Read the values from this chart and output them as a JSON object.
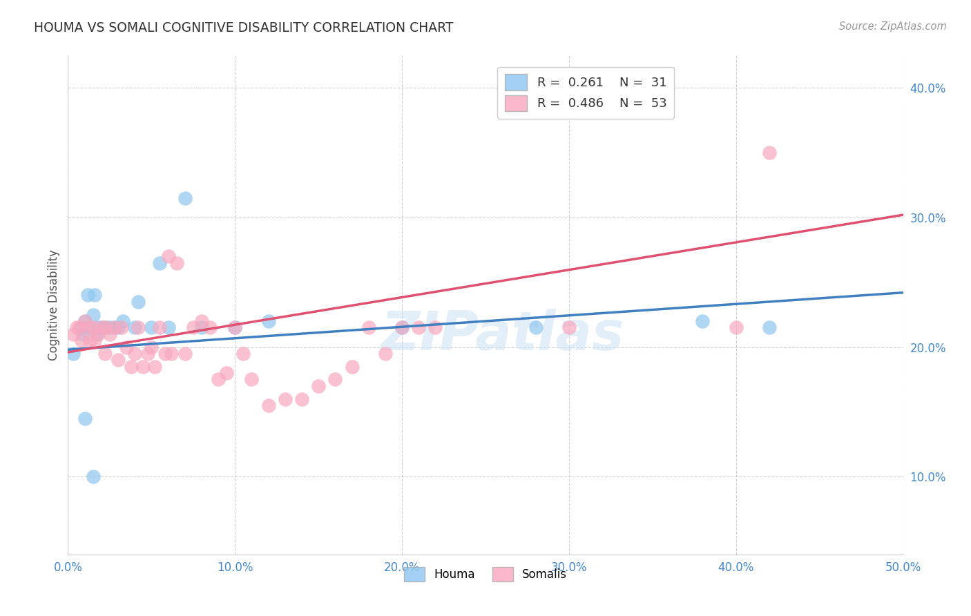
{
  "title": "HOUMA VS SOMALI COGNITIVE DISABILITY CORRELATION CHART",
  "source": "Source: ZipAtlas.com",
  "ylabel_label": "Cognitive Disability",
  "xlim": [
    0.0,
    0.5
  ],
  "ylim": [
    0.04,
    0.425
  ],
  "xticks": [
    0.0,
    0.1,
    0.2,
    0.3,
    0.4,
    0.5
  ],
  "yticks": [
    0.1,
    0.2,
    0.3,
    0.4
  ],
  "ytick_labels": [
    "10.0%",
    "20.0%",
    "30.0%",
    "40.0%"
  ],
  "xtick_labels": [
    "0.0%",
    "10.0%",
    "20.0%",
    "30.0%",
    "40.0%",
    "50.0%"
  ],
  "r_houma": 0.261,
  "n_houma": 31,
  "r_somali": 0.486,
  "n_somali": 53,
  "houma_color": "#8ec6f0",
  "somali_color": "#f8a8be",
  "houma_line_color": "#4080c0",
  "somali_line_color": "#e05070",
  "houma_x": [
    0.003,
    0.008,
    0.009,
    0.01,
    0.012,
    0.013,
    0.015,
    0.016,
    0.017,
    0.018,
    0.02,
    0.022,
    0.025,
    0.028,
    0.03,
    0.033,
    0.04,
    0.042,
    0.05,
    0.055,
    0.06,
    0.07,
    0.08,
    0.1,
    0.12,
    0.2,
    0.28,
    0.38,
    0.42,
    0.01,
    0.015
  ],
  "houma_y": [
    0.195,
    0.215,
    0.21,
    0.22,
    0.24,
    0.215,
    0.225,
    0.24,
    0.21,
    0.215,
    0.215,
    0.215,
    0.215,
    0.215,
    0.215,
    0.22,
    0.215,
    0.235,
    0.215,
    0.265,
    0.215,
    0.315,
    0.215,
    0.215,
    0.22,
    0.215,
    0.215,
    0.22,
    0.215,
    0.145,
    0.1
  ],
  "somali_x": [
    0.003,
    0.005,
    0.007,
    0.008,
    0.01,
    0.012,
    0.013,
    0.015,
    0.016,
    0.018,
    0.02,
    0.022,
    0.023,
    0.025,
    0.028,
    0.03,
    0.032,
    0.035,
    0.038,
    0.04,
    0.042,
    0.045,
    0.048,
    0.05,
    0.052,
    0.055,
    0.058,
    0.06,
    0.062,
    0.065,
    0.07,
    0.075,
    0.08,
    0.085,
    0.09,
    0.095,
    0.1,
    0.105,
    0.11,
    0.12,
    0.13,
    0.14,
    0.15,
    0.16,
    0.17,
    0.18,
    0.19,
    0.2,
    0.21,
    0.22,
    0.3,
    0.4,
    0.42
  ],
  "somali_y": [
    0.21,
    0.215,
    0.215,
    0.205,
    0.22,
    0.215,
    0.205,
    0.215,
    0.205,
    0.21,
    0.215,
    0.195,
    0.215,
    0.21,
    0.215,
    0.19,
    0.215,
    0.2,
    0.185,
    0.195,
    0.215,
    0.185,
    0.195,
    0.2,
    0.185,
    0.215,
    0.195,
    0.27,
    0.195,
    0.265,
    0.195,
    0.215,
    0.22,
    0.215,
    0.175,
    0.18,
    0.215,
    0.195,
    0.175,
    0.155,
    0.16,
    0.16,
    0.17,
    0.175,
    0.185,
    0.215,
    0.195,
    0.215,
    0.215,
    0.215,
    0.215,
    0.215,
    0.35
  ],
  "houma_line_x": [
    0.0,
    0.5
  ],
  "houma_line_y": [
    0.198,
    0.242
  ],
  "somali_line_x": [
    0.0,
    0.5
  ],
  "somali_line_y": [
    0.196,
    0.302
  ],
  "background_color": "#ffffff",
  "grid_color": "#cccccc",
  "watermark_text": "ZIPatlas",
  "watermark_color": "#d0e4f4",
  "watermark_alpha": 0.6
}
